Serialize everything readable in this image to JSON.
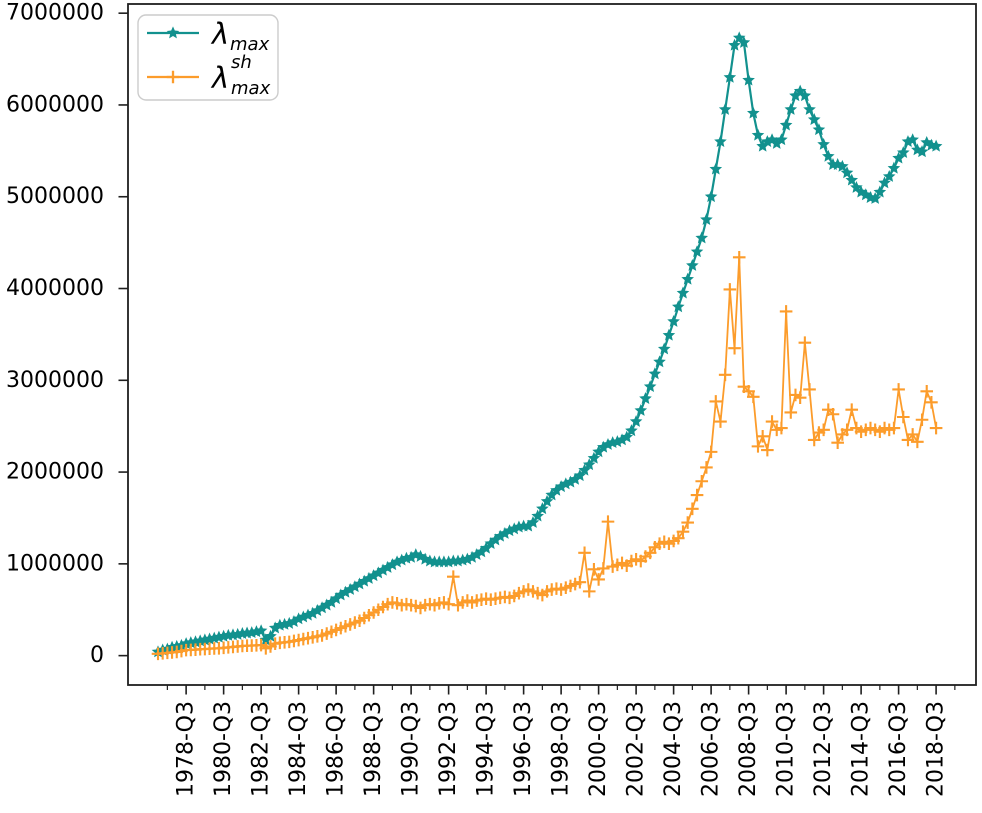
{
  "page": {
    "background": "#ffffff"
  },
  "chart_data": {
    "type": "line",
    "title": "",
    "xlabel": "",
    "ylabel": "",
    "grid": false,
    "frame_color": "#1f1f1f",
    "x_axis": {
      "unit": "quarter",
      "start": "1977-Q1",
      "end": "2018-Q3",
      "tick_label_rotation_deg": 90,
      "first_major_tick_index": 6,
      "major_tick_every": 8,
      "first_minor_tick_index": 2,
      "minor_tick_every": 4,
      "minor_tick_last_index": 170,
      "major_tick_labels": [
        "1978-Q3",
        "1980-Q3",
        "1982-Q3",
        "1984-Q3",
        "1986-Q3",
        "1988-Q3",
        "1990-Q3",
        "1992-Q3",
        "1994-Q3",
        "1996-Q3",
        "1998-Q3",
        "2000-Q3",
        "2002-Q3",
        "2004-Q3",
        "2006-Q3",
        "2008-Q3",
        "2010-Q3",
        "2012-Q3",
        "2014-Q3",
        "2016-Q3",
        "2018-Q3"
      ]
    },
    "y_axis": {
      "tick_labels": [
        "0",
        "1000000",
        "2000000",
        "3000000",
        "4000000",
        "5000000",
        "6000000",
        "7000000"
      ],
      "tick_values": [
        0,
        1000000,
        2000000,
        3000000,
        4000000,
        5000000,
        6000000,
        7000000
      ],
      "axis_min": -320000,
      "axis_max": 7100000
    },
    "legend": {
      "position": "upper left",
      "border_color": "#cccccc",
      "fill": "#ffffff"
    },
    "series": [
      {
        "name": "lambda-max",
        "label": {
          "symbol": "λ",
          "sub": "max",
          "sup": ""
        },
        "color": "#12918e",
        "marker": "star",
        "line_width": 2.2,
        "values": [
          40000,
          60000,
          70000,
          90000,
          100000,
          110000,
          130000,
          140000,
          150000,
          160000,
          170000,
          180000,
          190000,
          200000,
          210000,
          220000,
          225000,
          230000,
          240000,
          245000,
          250000,
          260000,
          270000,
          170000,
          210000,
          300000,
          330000,
          340000,
          350000,
          370000,
          400000,
          420000,
          440000,
          460000,
          490000,
          520000,
          550000,
          580000,
          620000,
          660000,
          690000,
          720000,
          750000,
          780000,
          810000,
          840000,
          870000,
          900000,
          930000,
          960000,
          990000,
          1020000,
          1040000,
          1060000,
          1070000,
          1100000,
          1080000,
          1050000,
          1030000,
          1020000,
          1020000,
          1020000,
          1020000,
          1030000,
          1030000,
          1040000,
          1050000,
          1070000,
          1100000,
          1130000,
          1170000,
          1220000,
          1260000,
          1300000,
          1330000,
          1360000,
          1380000,
          1400000,
          1410000,
          1410000,
          1450000,
          1520000,
          1600000,
          1680000,
          1750000,
          1800000,
          1840000,
          1870000,
          1890000,
          1920000,
          1960000,
          2020000,
          2080000,
          2150000,
          2220000,
          2270000,
          2300000,
          2320000,
          2330000,
          2350000,
          2380000,
          2450000,
          2550000,
          2670000,
          2800000,
          2930000,
          3070000,
          3200000,
          3340000,
          3490000,
          3640000,
          3800000,
          3950000,
          4100000,
          4250000,
          4400000,
          4550000,
          4750000,
          5000000,
          5300000,
          5600000,
          5950000,
          6300000,
          6650000,
          6730000,
          6680000,
          6270000,
          5910000,
          5670000,
          5550000,
          5600000,
          5620000,
          5580000,
          5620000,
          5780000,
          5950000,
          6100000,
          6150000,
          6100000,
          5950000,
          5840000,
          5730000,
          5570000,
          5440000,
          5350000,
          5350000,
          5330000,
          5260000,
          5180000,
          5100000,
          5050000,
          5020000,
          4990000,
          4980000,
          5050000,
          5150000,
          5220000,
          5310000,
          5420000,
          5480000,
          5600000,
          5620000,
          5510000,
          5490000,
          5590000,
          5560000,
          5550000
        ]
      },
      {
        "name": "lambda-max-sh",
        "label": {
          "symbol": "λ",
          "sub": "max",
          "sup": "sh"
        },
        "color": "#fc9c2b",
        "marker": "plus",
        "line_width": 1.8,
        "values": [
          20000,
          25000,
          30000,
          35000,
          40000,
          50000,
          60000,
          62000,
          65000,
          70000,
          72000,
          75000,
          78000,
          80000,
          85000,
          90000,
          95000,
          100000,
          105000,
          108000,
          110000,
          112000,
          115000,
          80000,
          100000,
          130000,
          140000,
          145000,
          150000,
          160000,
          170000,
          180000,
          190000,
          200000,
          210000,
          220000,
          240000,
          260000,
          280000,
          300000,
          320000,
          340000,
          360000,
          380000,
          410000,
          440000,
          470000,
          500000,
          530000,
          560000,
          580000,
          570000,
          550000,
          560000,
          550000,
          540000,
          520000,
          550000,
          560000,
          550000,
          570000,
          580000,
          560000,
          860000,
          550000,
          580000,
          600000,
          580000,
          600000,
          610000,
          620000,
          610000,
          620000,
          630000,
          640000,
          630000,
          650000,
          680000,
          700000,
          720000,
          700000,
          680000,
          660000,
          700000,
          720000,
          730000,
          720000,
          740000,
          760000,
          780000,
          800000,
          1120000,
          700000,
          940000,
          830000,
          950000,
          1460000,
          970000,
          990000,
          1010000,
          980000,
          1030000,
          1050000,
          1030000,
          1080000,
          1120000,
          1180000,
          1220000,
          1240000,
          1220000,
          1250000,
          1280000,
          1350000,
          1450000,
          1600000,
          1750000,
          1900000,
          2050000,
          2220000,
          2770000,
          2550000,
          3060000,
          3990000,
          3350000,
          4340000,
          2930000,
          2880000,
          2820000,
          2280000,
          2390000,
          2240000,
          2550000,
          2460000,
          2480000,
          3750000,
          2650000,
          2840000,
          2810000,
          3410000,
          2900000,
          2350000,
          2430000,
          2460000,
          2680000,
          2630000,
          2320000,
          2410000,
          2460000,
          2680000,
          2480000,
          2440000,
          2460000,
          2480000,
          2460000,
          2440000,
          2480000,
          2460000,
          2480000,
          2900000,
          2600000,
          2350000,
          2410000,
          2330000,
          2570000,
          2880000,
          2760000,
          2480000
        ]
      }
    ]
  }
}
